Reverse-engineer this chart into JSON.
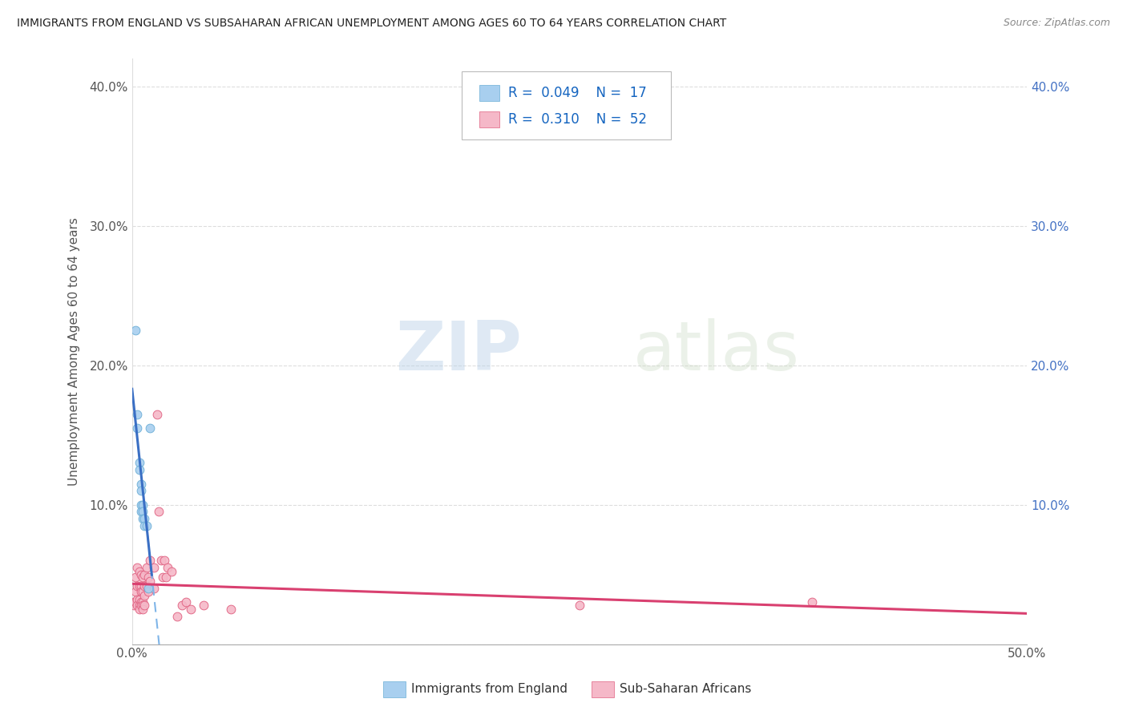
{
  "title": "IMMIGRANTS FROM ENGLAND VS SUBSAHARAN AFRICAN UNEMPLOYMENT AMONG AGES 60 TO 64 YEARS CORRELATION CHART",
  "source": "Source: ZipAtlas.com",
  "ylabel": "Unemployment Among Ages 60 to 64 years",
  "xlim": [
    0.0,
    0.5
  ],
  "ylim": [
    0.0,
    0.42
  ],
  "xticks": [
    0.0,
    0.1,
    0.2,
    0.3,
    0.4,
    0.5
  ],
  "xticklabels": [
    "0.0%",
    "",
    "",
    "",
    "",
    "50.0%"
  ],
  "yticks": [
    0.0,
    0.1,
    0.2,
    0.3,
    0.4
  ],
  "yticklabels": [
    "",
    "10.0%",
    "20.0%",
    "30.0%",
    "40.0%"
  ],
  "right_yticklabels": [
    "10.0%",
    "20.0%",
    "30.0%",
    "40.0%"
  ],
  "england_color": "#A8CFEF",
  "england_edge_color": "#6BAED6",
  "subsaharan_color": "#F5B8C8",
  "subsaharan_edge_color": "#E06080",
  "england_line_color": "#3A6FC4",
  "england_dash_color": "#7FB5E8",
  "subsaharan_line_color": "#D94070",
  "england_R": 0.049,
  "england_N": 17,
  "subsaharan_R": 0.31,
  "subsaharan_N": 52,
  "england_points": [
    [
      0.002,
      0.225
    ],
    [
      0.003,
      0.165
    ],
    [
      0.003,
      0.155
    ],
    [
      0.004,
      0.13
    ],
    [
      0.004,
      0.125
    ],
    [
      0.005,
      0.115
    ],
    [
      0.005,
      0.11
    ],
    [
      0.005,
      0.1
    ],
    [
      0.005,
      0.095
    ],
    [
      0.006,
      0.1
    ],
    [
      0.006,
      0.095
    ],
    [
      0.006,
      0.09
    ],
    [
      0.007,
      0.09
    ],
    [
      0.007,
      0.085
    ],
    [
      0.008,
      0.085
    ],
    [
      0.009,
      0.04
    ],
    [
      0.01,
      0.155
    ]
  ],
  "subsaharan_points": [
    [
      0.001,
      0.03
    ],
    [
      0.001,
      0.028
    ],
    [
      0.002,
      0.048
    ],
    [
      0.002,
      0.038
    ],
    [
      0.002,
      0.03
    ],
    [
      0.003,
      0.055
    ],
    [
      0.003,
      0.042
    ],
    [
      0.003,
      0.032
    ],
    [
      0.003,
      0.028
    ],
    [
      0.004,
      0.052
    ],
    [
      0.004,
      0.042
    ],
    [
      0.004,
      0.032
    ],
    [
      0.004,
      0.028
    ],
    [
      0.004,
      0.025
    ],
    [
      0.005,
      0.05
    ],
    [
      0.005,
      0.042
    ],
    [
      0.005,
      0.038
    ],
    [
      0.005,
      0.03
    ],
    [
      0.005,
      0.028
    ],
    [
      0.006,
      0.048
    ],
    [
      0.006,
      0.038
    ],
    [
      0.006,
      0.03
    ],
    [
      0.006,
      0.028
    ],
    [
      0.006,
      0.025
    ],
    [
      0.007,
      0.05
    ],
    [
      0.007,
      0.042
    ],
    [
      0.007,
      0.035
    ],
    [
      0.007,
      0.028
    ],
    [
      0.008,
      0.055
    ],
    [
      0.008,
      0.042
    ],
    [
      0.009,
      0.048
    ],
    [
      0.009,
      0.038
    ],
    [
      0.01,
      0.06
    ],
    [
      0.01,
      0.045
    ],
    [
      0.012,
      0.055
    ],
    [
      0.012,
      0.04
    ],
    [
      0.014,
      0.165
    ],
    [
      0.015,
      0.095
    ],
    [
      0.016,
      0.06
    ],
    [
      0.017,
      0.048
    ],
    [
      0.018,
      0.06
    ],
    [
      0.019,
      0.048
    ],
    [
      0.02,
      0.055
    ],
    [
      0.022,
      0.052
    ],
    [
      0.025,
      0.02
    ],
    [
      0.028,
      0.028
    ],
    [
      0.03,
      0.03
    ],
    [
      0.033,
      0.025
    ],
    [
      0.04,
      0.028
    ],
    [
      0.055,
      0.025
    ],
    [
      0.25,
      0.028
    ],
    [
      0.38,
      0.03
    ]
  ],
  "watermark_zip": "ZIP",
  "watermark_atlas": "atlas",
  "bg_color": "#FFFFFF",
  "grid_color": "#DDDDDD",
  "title_color": "#222222",
  "axis_label_color": "#555555",
  "tick_color": "#555555"
}
